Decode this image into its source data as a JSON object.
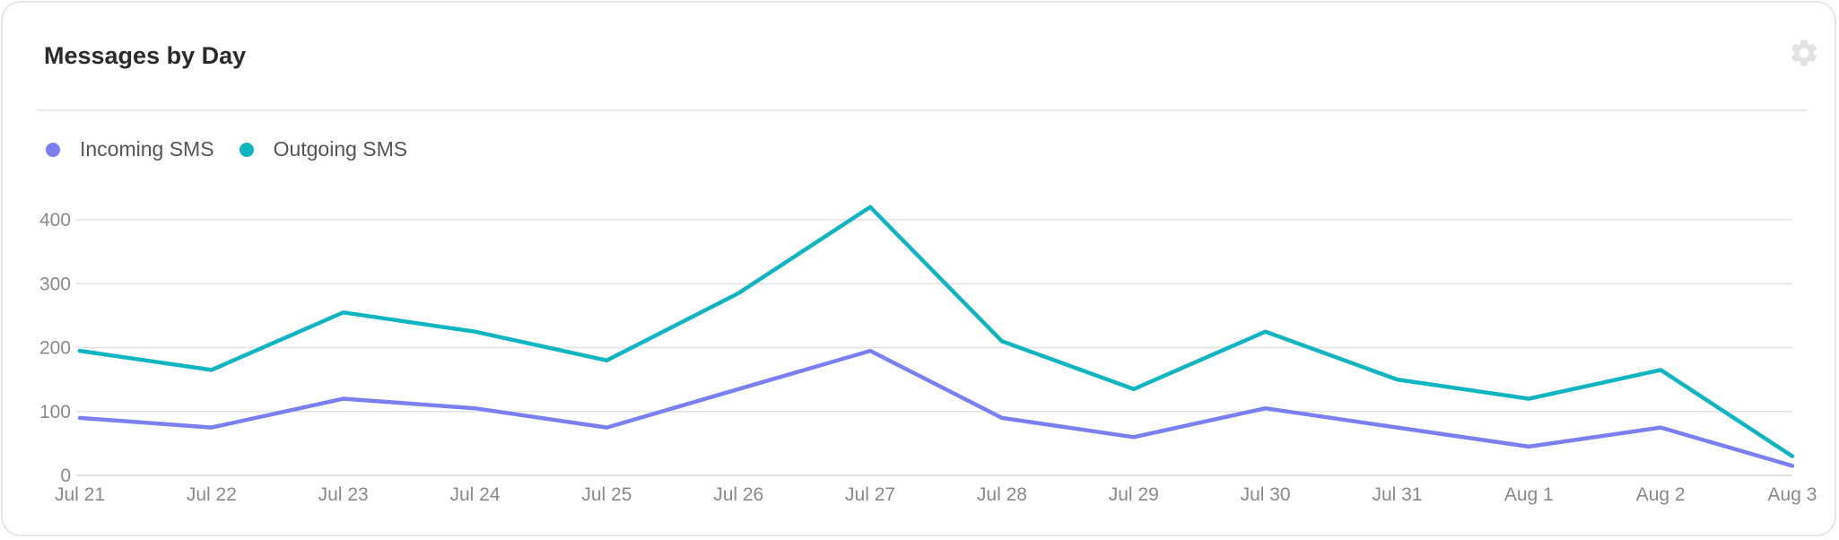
{
  "card": {
    "title": "Messages by Day",
    "settings_icon": "gear-icon"
  },
  "colors": {
    "incoming": "#7b7ff2",
    "outgoing": "#0fb5c0",
    "grid": "#e3e3e3",
    "tick_text": "#8a8a8a"
  },
  "chart_data": {
    "type": "line",
    "title": "Messages by Day",
    "xlabel": "",
    "ylabel": "",
    "categories": [
      "Jul 21",
      "Jul 22",
      "Jul 23",
      "Jul 24",
      "Jul 25",
      "Jul 26",
      "Jul 27",
      "Jul 28",
      "Jul 29",
      "Jul 30",
      "Jul 31",
      "Aug 1",
      "Aug 2",
      "Aug 3"
    ],
    "y_ticks": [
      0,
      100,
      200,
      300,
      400
    ],
    "ylim": [
      0,
      440
    ],
    "grid": true,
    "legend_position": "top-left",
    "series": [
      {
        "name": "Incoming SMS",
        "color": "#7b7ff2",
        "values": [
          90,
          75,
          120,
          105,
          75,
          135,
          195,
          90,
          60,
          105,
          75,
          45,
          75,
          15
        ]
      },
      {
        "name": "Outgoing SMS",
        "color": "#0fb5c0",
        "values": [
          195,
          165,
          255,
          225,
          180,
          285,
          420,
          210,
          135,
          225,
          150,
          120,
          165,
          30
        ]
      }
    ]
  }
}
